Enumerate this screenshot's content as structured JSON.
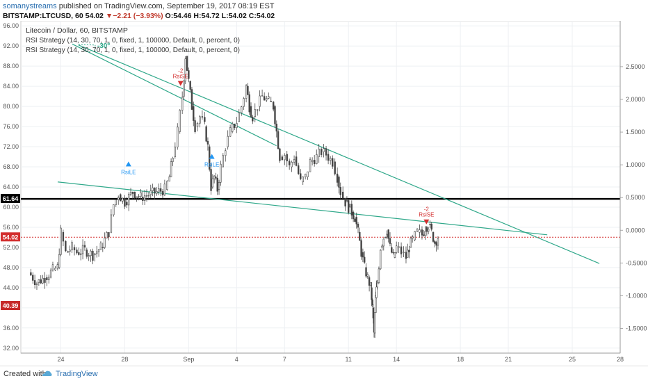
{
  "header": {
    "author": "somanystreams",
    "published_text": " published on TradingView.com, September 19, 2017 08:19 EST"
  },
  "ticker": {
    "symbol": "BITSTAMP:LTCUSD, 60",
    "last": "54.02",
    "change_arrow": "▼",
    "change": "−2.21 (−3.93%)",
    "ohlc": "O:54.46 H:54.72 L:54.02 C:54.02"
  },
  "legend": {
    "title": "Litecoin / Dollar, 60, BITSTAMP",
    "line1": "RSI Strategy (14, 30, 70, 1, 0, fixed, 1, 100000, Default, 0, percent, 0)",
    "line2": "RSI Strategy (14, 30, 70, 1, 0, fixed, 1, 100000, Default, 0, percent, 0)"
  },
  "footer": {
    "created_with": "Created with",
    "brand": "TradingView"
  },
  "colors": {
    "trendline": "#2fa88a",
    "hline": "#000000",
    "candle": "#444444",
    "sell": "#d32f2f",
    "buy": "#2196f3",
    "last_price": "#d32f2f",
    "low_label": "#c62828"
  },
  "chart_data": {
    "type": "candlestick",
    "x_ticks": [
      "24",
      "28",
      "Sep",
      "4",
      "7",
      "11",
      "14",
      "18",
      "21",
      "25",
      "28"
    ],
    "y_left_ticks": [
      "96.00",
      "92.00",
      "88.00",
      "84.00",
      "80.00",
      "76.00",
      "72.00",
      "68.00",
      "64.00",
      "60.00",
      "56.00",
      "52.00",
      "48.00",
      "44.00",
      "40.00",
      "36.00",
      "32.00"
    ],
    "y_right_ticks": [
      "2.5000",
      "2.0000",
      "1.5000",
      "1.0000",
      "0.5000",
      "0.0000",
      "-0.5000",
      "-1.0000",
      "-1.5000"
    ],
    "ylim": [
      31,
      97
    ],
    "price_labels": {
      "hline": "61.64",
      "last": "54.02",
      "low": "40.39"
    },
    "horizontal_line": 61.64,
    "last_price": 54.02,
    "angle_label": "-30º",
    "signals": [
      {
        "text": "-2",
        "label": "RsiSE",
        "type": "sell",
        "x": 6.9,
        "y": 84.5
      },
      {
        "text": "RsiLE",
        "label": "",
        "type": "buy",
        "x": 4.4,
        "y": 68.5
      },
      {
        "text": "RsiLE",
        "label": "",
        "type": "buy",
        "x": 8.4,
        "y": 70.0
      },
      {
        "text": "-2",
        "label": "RsiSE",
        "type": "sell",
        "x": 18.7,
        "y": 57.0
      }
    ],
    "trendlines": [
      {
        "x1": 1.0,
        "y1": 65.0,
        "x2": 24.5,
        "y2": 54.5
      },
      {
        "x1": 2.0,
        "y1": 92.2,
        "x2": 27.0,
        "y2": 48.8
      },
      {
        "x1": 1.7,
        "y1": 92.4,
        "x2": 11.5,
        "y2": 72.2
      }
    ],
    "price_path": [
      [
        22.0,
        47.0
      ],
      [
        22.5,
        45.0
      ],
      [
        23.0,
        46.0
      ],
      [
        23.5,
        47.5
      ],
      [
        23.8,
        48.0
      ],
      [
        24.0,
        55.0
      ],
      [
        24.3,
        51.0
      ],
      [
        24.7,
        52.0
      ],
      [
        25.0,
        51.0
      ],
      [
        25.5,
        51.5
      ],
      [
        26.0,
        50.5
      ],
      [
        26.5,
        52.0
      ],
      [
        27.0,
        55.0
      ],
      [
        27.3,
        60.5
      ],
      [
        27.6,
        62.5
      ],
      [
        28.0,
        61.0
      ],
      [
        28.5,
        63.0
      ],
      [
        29.0,
        62.0
      ],
      [
        29.5,
        62.5
      ],
      [
        30.0,
        63.0
      ],
      [
        30.5,
        63.5
      ],
      [
        30.8,
        66.0
      ],
      [
        31.0,
        70.0
      ],
      [
        31.3,
        75.0
      ],
      [
        31.6,
        82.0
      ],
      [
        31.8,
        90.0
      ],
      [
        32.0,
        85.0
      ],
      [
        32.2,
        80.0
      ],
      [
        32.4,
        76.0
      ],
      [
        32.7,
        78.0
      ],
      [
        33.0,
        76.0
      ],
      [
        33.2,
        72.0
      ],
      [
        33.4,
        64.0
      ],
      [
        33.6,
        66.0
      ],
      [
        33.8,
        63.5
      ],
      [
        34.0,
        68.0
      ],
      [
        34.3,
        72.0
      ],
      [
        34.6,
        75.0
      ],
      [
        35.0,
        77.0
      ],
      [
        35.3,
        80.0
      ],
      [
        35.6,
        84.0
      ],
      [
        35.8,
        80.0
      ],
      [
        36.0,
        78.0
      ],
      [
        36.3,
        80.0
      ],
      [
        36.6,
        82.0
      ],
      [
        37.0,
        81.0
      ],
      [
        37.3,
        80.0
      ],
      [
        37.5,
        75.0
      ],
      [
        37.7,
        70.0
      ],
      [
        38.0,
        70.5
      ],
      [
        38.3,
        68.0
      ],
      [
        38.6,
        70.0
      ],
      [
        39.0,
        65.0
      ],
      [
        39.3,
        66.0
      ],
      [
        39.6,
        69.0
      ],
      [
        40.0,
        70.0
      ],
      [
        40.3,
        71.0
      ],
      [
        40.6,
        70.5
      ],
      [
        41.0,
        69.0
      ],
      [
        41.3,
        66.0
      ],
      [
        41.5,
        63.0
      ],
      [
        41.8,
        61.0
      ],
      [
        42.0,
        60.0
      ],
      [
        42.2,
        59.0
      ],
      [
        42.4,
        58.0
      ],
      [
        42.6,
        55.0
      ],
      [
        42.8,
        51.0
      ],
      [
        43.0,
        48.0
      ],
      [
        43.2,
        46.0
      ],
      [
        43.4,
        44.0
      ],
      [
        43.5,
        40.0
      ],
      [
        43.6,
        35.0
      ],
      [
        43.7,
        42.0
      ],
      [
        43.8,
        45.0
      ],
      [
        44.0,
        52.0
      ],
      [
        44.2,
        54.0
      ],
      [
        44.4,
        55.5
      ],
      [
        44.6,
        52.0
      ],
      [
        44.8,
        50.0
      ],
      [
        45.0,
        52.0
      ],
      [
        45.3,
        51.0
      ],
      [
        45.6,
        50.0
      ],
      [
        45.8,
        52.0
      ],
      [
        46.0,
        53.5
      ],
      [
        46.3,
        55.0
      ],
      [
        46.6,
        54.5
      ],
      [
        46.8,
        56.0
      ],
      [
        47.0,
        56.5
      ],
      [
        47.2,
        55.0
      ],
      [
        47.4,
        53.0
      ],
      [
        47.6,
        54.0
      ]
    ]
  }
}
